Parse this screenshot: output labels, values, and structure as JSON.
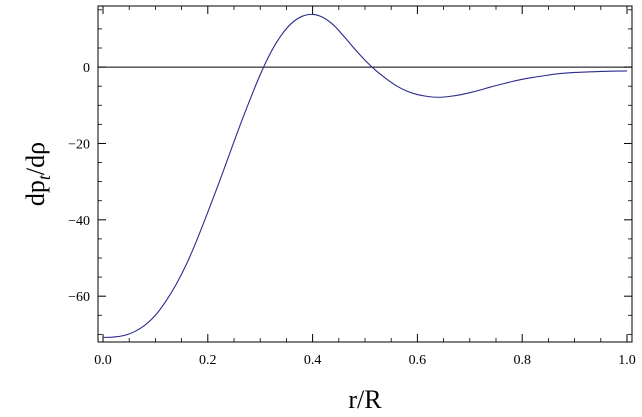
{
  "chart_data": {
    "type": "line",
    "xlabel": "r/R",
    "ylabel_parts": {
      "base": "dp",
      "subscript": "t",
      "rest": "/dρ"
    },
    "xlim": [
      0,
      1
    ],
    "ylim": [
      -72,
      16
    ],
    "x_ticks": [
      {
        "value": 0.0,
        "label": "0.0"
      },
      {
        "value": 0.2,
        "label": "0.2"
      },
      {
        "value": 0.4,
        "label": "0.4"
      },
      {
        "value": 0.6,
        "label": "0.6"
      },
      {
        "value": 0.8,
        "label": "0.8"
      },
      {
        "value": 1.0,
        "label": "1.0"
      }
    ],
    "y_ticks": [
      {
        "value": 0,
        "label": "0"
      },
      {
        "value": -20,
        "label": "−20"
      },
      {
        "value": -40,
        "label": "−40"
      },
      {
        "value": -60,
        "label": "−60"
      }
    ],
    "reference_line_y": 0,
    "grid": false,
    "line_color": "#2b2b8c",
    "series": [
      {
        "points": [
          [
            0.0,
            -70.8
          ],
          [
            0.02,
            -70.7
          ],
          [
            0.04,
            -70.3
          ],
          [
            0.06,
            -69.3
          ],
          [
            0.08,
            -67.6
          ],
          [
            0.1,
            -65.0
          ],
          [
            0.12,
            -61.3
          ],
          [
            0.14,
            -56.8
          ],
          [
            0.16,
            -51.4
          ],
          [
            0.18,
            -45.0
          ],
          [
            0.2,
            -38.0
          ],
          [
            0.22,
            -30.8
          ],
          [
            0.24,
            -23.3
          ],
          [
            0.26,
            -15.8
          ],
          [
            0.28,
            -8.7
          ],
          [
            0.3,
            -2.0
          ],
          [
            0.32,
            3.8
          ],
          [
            0.34,
            8.3
          ],
          [
            0.36,
            11.5
          ],
          [
            0.38,
            13.3
          ],
          [
            0.4,
            13.8
          ],
          [
            0.42,
            13.0
          ],
          [
            0.44,
            11.0
          ],
          [
            0.46,
            8.0
          ],
          [
            0.48,
            4.8
          ],
          [
            0.5,
            1.8
          ],
          [
            0.52,
            -0.8
          ],
          [
            0.54,
            -3.0
          ],
          [
            0.56,
            -4.9
          ],
          [
            0.58,
            -6.3
          ],
          [
            0.6,
            -7.2
          ],
          [
            0.62,
            -7.7
          ],
          [
            0.64,
            -7.9
          ],
          [
            0.66,
            -7.7
          ],
          [
            0.68,
            -7.3
          ],
          [
            0.7,
            -6.7
          ],
          [
            0.72,
            -6.0
          ],
          [
            0.74,
            -5.2
          ],
          [
            0.76,
            -4.5
          ],
          [
            0.78,
            -3.8
          ],
          [
            0.8,
            -3.2
          ],
          [
            0.82,
            -2.7
          ],
          [
            0.84,
            -2.3
          ],
          [
            0.86,
            -1.9
          ],
          [
            0.88,
            -1.6
          ],
          [
            0.9,
            -1.4
          ],
          [
            0.92,
            -1.3
          ],
          [
            0.94,
            -1.2
          ],
          [
            0.96,
            -1.1
          ],
          [
            0.98,
            -1.05
          ],
          [
            1.0,
            -1.0
          ]
        ]
      }
    ]
  }
}
